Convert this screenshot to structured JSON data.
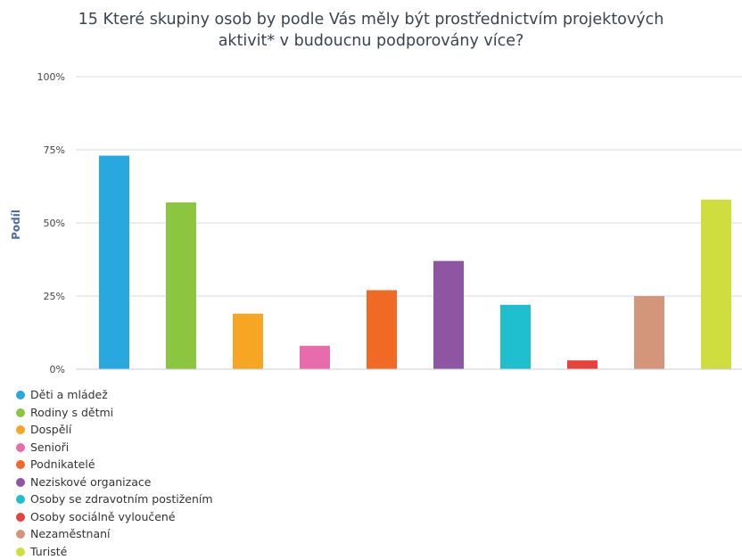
{
  "chart_data": {
    "type": "bar",
    "title_lines": [
      "15 Které skupiny osob by podle Vás měly být prostřednictvím projektových",
      "aktivit* v budoucnu podporovány více?"
    ],
    "ylabel": "Podíl",
    "xlabel": "",
    "ylim": [
      0,
      100
    ],
    "y_ticks": [
      "0%",
      "25%",
      "50%",
      "75%",
      "100%"
    ],
    "y_tick_values": [
      0,
      25,
      50,
      75,
      100
    ],
    "grid": true,
    "legend_position": "bottom-left",
    "categories": [
      "Děti a mládež",
      "Rodiny s dětmi",
      "Dospělí",
      "Senioři",
      "Podnikatelé",
      "Neziskové organizace",
      "Osoby se zdravotním postižením",
      "Osoby sociálně vyloučené",
      "Nezaměstnaní",
      "Turisté"
    ],
    "values": [
      73,
      57,
      19,
      8,
      27,
      37,
      22,
      3,
      25,
      58
    ],
    "colors": [
      "#29a8e0",
      "#8cc540",
      "#f6a623",
      "#e86bab",
      "#f06a25",
      "#8e55a3",
      "#1fbfcf",
      "#e8433a",
      "#d4967a",
      "#cfdd3e"
    ]
  }
}
